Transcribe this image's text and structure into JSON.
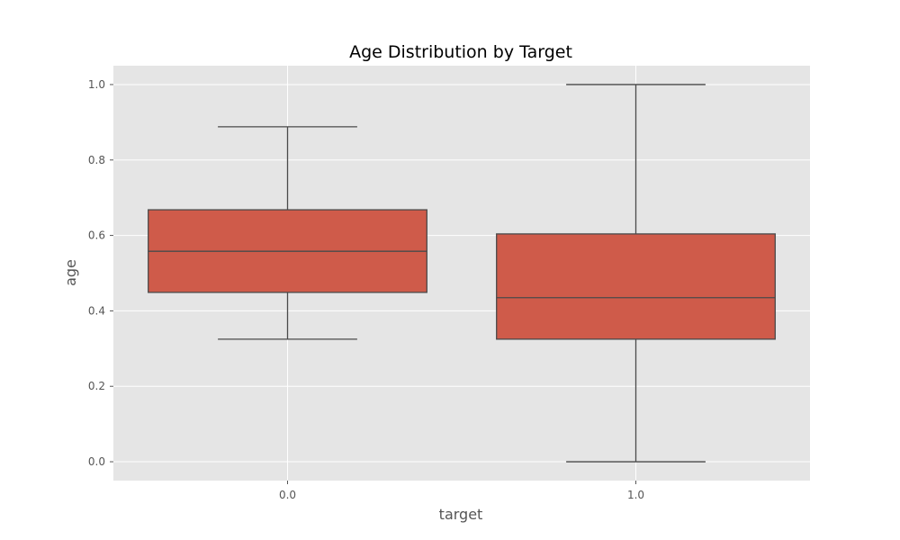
{
  "chart_data": {
    "type": "boxplot",
    "title": "Age Distribution by Target",
    "xlabel": "target",
    "ylabel": "age",
    "categories": [
      "0.0",
      "1.0"
    ],
    "boxes": [
      {
        "category": "0.0",
        "whisker_low": 0.325,
        "q1": 0.449,
        "median": 0.558,
        "q3": 0.668,
        "whisker_high": 0.888
      },
      {
        "category": "1.0",
        "whisker_low": 0.0,
        "q1": 0.325,
        "median": 0.435,
        "q3": 0.604,
        "whisker_high": 1.0
      }
    ],
    "ylim": [
      -0.05,
      1.05
    ],
    "yticks": [
      0.0,
      0.2,
      0.4,
      0.6,
      0.8,
      1.0
    ],
    "ytick_labels": [
      "0.0",
      "0.2",
      "0.4",
      "0.6",
      "0.8",
      "1.0"
    ],
    "grid": true,
    "colors": {
      "box_fill": "#cf5b4a",
      "box_edge": "#4a4a4a",
      "plot_background": "#e5e5e5",
      "grid": "#ffffff",
      "text": "#555555",
      "title": "#000000"
    }
  }
}
